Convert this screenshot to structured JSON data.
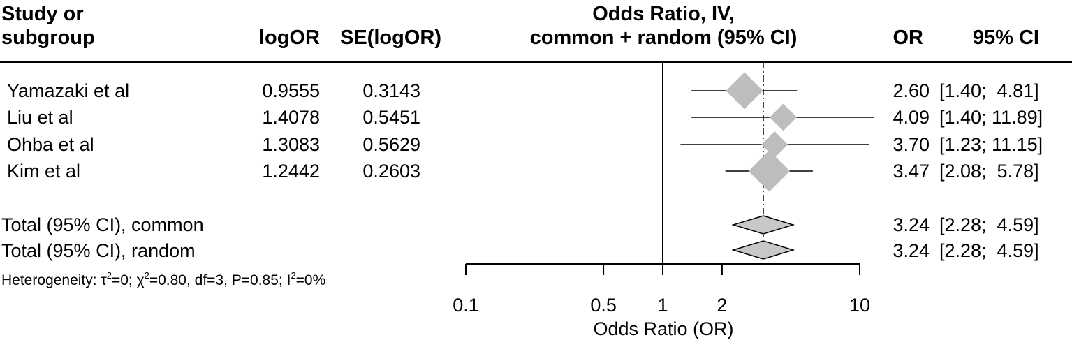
{
  "chart_data": {
    "type": "forest",
    "headers": {
      "study": [
        "Study or",
        "subgroup"
      ],
      "logor": "logOR",
      "se": "SE(logOR)",
      "plot": [
        "Odds Ratio, IV,",
        "common + random (95% CI)"
      ],
      "or": "OR",
      "ci": "95% CI"
    },
    "studies": [
      {
        "name": "Yamazaki et al",
        "logOR": "0.9555",
        "se": "0.3143",
        "or_text": "2.60",
        "ci_text": "[1.40;  4.81]",
        "or": 2.6,
        "lo": 1.4,
        "hi": 4.81,
        "weight": 0.3
      },
      {
        "name": "Liu et al",
        "logOR": "1.4078",
        "se": "0.5451",
        "or_text": "4.09",
        "ci_text": "[1.40; 11.89]",
        "or": 4.09,
        "lo": 1.4,
        "hi": 11.89,
        "weight": 0.1
      },
      {
        "name": "Ohba et al",
        "logOR": "1.3083",
        "se": "0.5629",
        "or_text": "3.70",
        "ci_text": "[1.23; 11.15]",
        "or": 3.7,
        "lo": 1.23,
        "hi": 11.15,
        "weight": 0.09
      },
      {
        "name": "Kim et al",
        "logOR": "1.2442",
        "se": "0.2603",
        "or_text": "3.47",
        "ci_text": "[2.08;  5.78]",
        "or": 3.47,
        "lo": 2.08,
        "hi": 5.78,
        "weight": 0.43
      }
    ],
    "totals": [
      {
        "name": "Total (95% CI), common",
        "or_text": "3.24",
        "ci_text": "[2.28;  4.59]",
        "or": 3.24,
        "lo": 2.28,
        "hi": 4.59
      },
      {
        "name": "Total (95% CI), random",
        "or_text": "3.24",
        "ci_text": "[2.28;  4.59]",
        "or": 3.24,
        "lo": 2.28,
        "hi": 4.59
      }
    ],
    "heterogeneity": {
      "prefix": "Heterogeneity: ",
      "tau": "τ",
      "tau_sup": "2",
      "tau_val": "=0; ",
      "chi": "χ",
      "chi_sup": "2",
      "chi_val": "=0.80, df=3, P=0.85; ",
      "i": "I",
      "i_sup": "2",
      "i_val": "=0%"
    },
    "x_scale": "log",
    "xlim": [
      0.1,
      10
    ],
    "x_ticks": [
      0.1,
      0.5,
      1,
      2,
      10
    ],
    "x_tick_labels": [
      "0.1",
      "0.5",
      "1",
      "2",
      "10"
    ],
    "xlabel": "Odds Ratio (OR)",
    "null_line": 1,
    "pooled_line": 3.24,
    "colors": {
      "square": "#bdbdbd",
      "diamond": "#c8c8c8",
      "line": "#000000"
    }
  }
}
